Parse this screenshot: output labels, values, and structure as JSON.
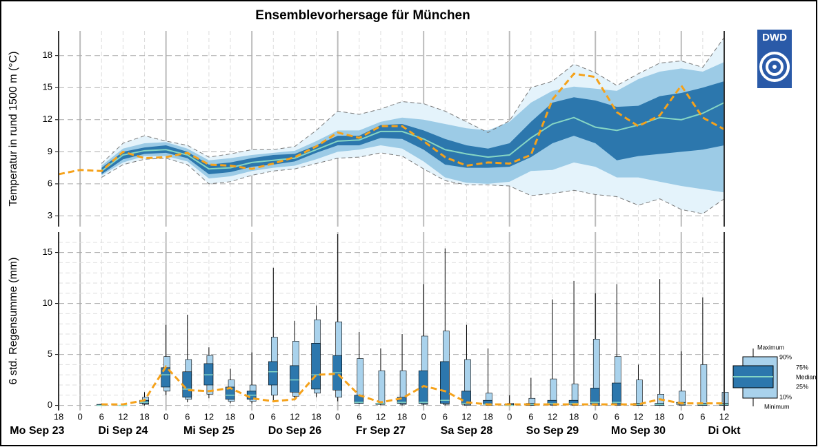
{
  "logo": "DWD",
  "chart_data": [
    {
      "type": "fan",
      "title": "Ensemblevorhersage für München",
      "ylabel": "Temperatur  in rund 1500 m (°C)",
      "ylim": [
        2,
        20.3
      ],
      "yticks": [
        3,
        6,
        9,
        12,
        15,
        18
      ],
      "grid": true,
      "colors": {
        "range": "#e4f3fb",
        "outer": "#9ccbe6",
        "inner": "#2c77ad",
        "median": "#86d6c4",
        "deterministic": "#f5a21b",
        "edge": "#777777"
      },
      "min": [
        null,
        null,
        6.6,
        7.8,
        8.3,
        8.4,
        7.8,
        6.0,
        6.2,
        6.8,
        7.2,
        7.4,
        7.9,
        8.4,
        8.5,
        8.9,
        8.6,
        7.4,
        6.3,
        5.9,
        5.9,
        5.8,
        4.9,
        5.1,
        5.4,
        5.0,
        4.8,
        4.0,
        4.6,
        3.6,
        3.2,
        4.6
      ],
      "p10": [
        null,
        null,
        6.8,
        8.0,
        8.6,
        8.6,
        8.1,
        6.5,
        6.7,
        7.2,
        7.5,
        7.7,
        8.3,
        9.0,
        9.2,
        9.6,
        9.3,
        8.1,
        6.6,
        6.1,
        6.0,
        6.2,
        7.2,
        7.3,
        8.0,
        7.6,
        6.6,
        6.6,
        6.2,
        5.8,
        5.5,
        5.2
      ],
      "p25": [
        null,
        null,
        6.9,
        8.3,
        8.8,
        8.9,
        8.4,
        6.9,
        7.1,
        7.6,
        7.8,
        8.1,
        8.9,
        9.6,
        9.6,
        10.3,
        10.2,
        9.2,
        7.8,
        7.5,
        7.5,
        7.6,
        8.5,
        9.8,
        10.5,
        9.8,
        8.2,
        8.6,
        8.8,
        9.0,
        9.2,
        9.6
      ],
      "median": [
        null,
        null,
        7.2,
        8.7,
        9.1,
        9.2,
        8.7,
        7.4,
        7.5,
        8.0,
        8.2,
        8.4,
        9.2,
        10.0,
        10.1,
        10.9,
        10.9,
        10.2,
        9.2,
        8.8,
        8.5,
        8.7,
        10.3,
        11.6,
        12.2,
        11.3,
        11.0,
        11.5,
        12.2,
        12.0,
        12.6,
        13.6
      ],
      "p75": [
        null,
        null,
        7.5,
        9.0,
        9.4,
        9.6,
        9.0,
        7.8,
        8.0,
        8.4,
        8.7,
        8.8,
        9.6,
        10.5,
        10.5,
        11.5,
        11.6,
        11.0,
        10.2,
        9.6,
        9.3,
        9.8,
        11.8,
        13.6,
        14.1,
        13.8,
        13.2,
        13.3,
        14.2,
        14.5,
        15.0,
        15.6
      ],
      "p90": [
        null,
        null,
        7.7,
        9.3,
        9.8,
        9.9,
        9.3,
        8.2,
        8.4,
        8.7,
        8.9,
        9.1,
        10.0,
        11.0,
        11.0,
        11.8,
        12.2,
        12.0,
        11.6,
        11.2,
        11.0,
        11.8,
        13.6,
        14.7,
        15.1,
        14.9,
        14.7,
        15.8,
        16.5,
        16.8,
        16.5,
        17.4
      ],
      "max": [
        null,
        null,
        7.9,
        9.8,
        10.5,
        10.0,
        9.6,
        8.5,
        8.8,
        9.2,
        9.2,
        9.5,
        11.0,
        12.8,
        12.5,
        13.0,
        13.7,
        13.5,
        12.8,
        11.8,
        10.8,
        11.9,
        15.0,
        15.6,
        17.2,
        16.4,
        15.2,
        16.3,
        17.3,
        17.5,
        16.9,
        19.7
      ],
      "deterministic": [
        6.9,
        7.3,
        7.2,
        9.0,
        8.4,
        8.5,
        8.9,
        7.8,
        7.7,
        7.4,
        7.9,
        8.5,
        9.5,
        10.8,
        10.3,
        11.4,
        11.4,
        10.0,
        8.5,
        7.7,
        8.0,
        7.9,
        8.7,
        13.9,
        16.3,
        16.0,
        12.7,
        11.4,
        12.4,
        15.2,
        12.2,
        11.1
      ]
    },
    {
      "type": "box",
      "ylabel": "6 std. Regensumme (mm)",
      "ylim": [
        -0.5,
        17
      ],
      "yticks": [
        0,
        5,
        10,
        15
      ],
      "yminorticks": [
        1,
        2,
        3,
        4,
        6,
        7,
        8,
        9,
        11,
        12,
        13,
        14,
        16
      ],
      "grid": true,
      "categories": [
        18,
        0,
        6,
        12,
        18,
        0,
        6,
        12,
        18,
        0,
        6,
        12,
        18,
        0,
        6,
        12,
        18,
        0,
        6,
        12,
        18,
        0,
        6,
        12,
        18,
        0,
        6,
        12,
        18,
        0,
        6,
        12
      ],
      "days": [
        "Mo Sep 23",
        "Di Sep 24",
        "Mi Sep 25",
        "Do Sep 26",
        "Fr Sep 27",
        "Sa Sep 28",
        "So Sep 29",
        "Mo Sep 30",
        "Di Okt"
      ],
      "colors": {
        "outer": "#a9d2ec",
        "inner": "#2c77ad",
        "median": "#86d6c4",
        "deterministic": "#f5a21b"
      },
      "min": [
        null,
        null,
        0,
        0,
        0,
        1.0,
        0.3,
        0.7,
        0.2,
        0.2,
        0.5,
        0.5,
        0.8,
        0.4,
        0.1,
        0,
        0,
        0,
        0,
        0,
        0,
        0,
        0,
        0,
        0,
        0,
        0,
        0,
        0,
        0,
        0,
        0
      ],
      "p10": [
        null,
        null,
        0,
        0,
        0.1,
        1.4,
        0.6,
        1.1,
        0.4,
        0.4,
        1.0,
        0.9,
        1.2,
        0.8,
        0.2,
        0.1,
        0.1,
        0.1,
        0.1,
        0,
        0,
        0,
        0,
        0,
        0,
        0,
        0,
        0,
        0,
        0,
        0,
        0
      ],
      "p25": [
        null,
        null,
        0,
        0,
        0.2,
        1.8,
        0.8,
        2.0,
        0.6,
        0.6,
        2.0,
        1.3,
        1.6,
        1.5,
        0.2,
        0.1,
        0.2,
        0.2,
        0.2,
        0.1,
        0.1,
        0,
        0,
        0.1,
        0.1,
        0.1,
        0.1,
        0,
        0,
        0.1,
        0,
        0
      ],
      "median": [
        null,
        null,
        0,
        0,
        0.3,
        3.0,
        1.6,
        3.0,
        1.0,
        1.0,
        3.3,
        2.5,
        3.0,
        3.2,
        0.3,
        0.2,
        0.3,
        0.3,
        0.5,
        0.2,
        0.1,
        0,
        0.1,
        0.2,
        0.2,
        0.3,
        0.3,
        0.1,
        0.1,
        0.2,
        0.1,
        0.1
      ],
      "p75": [
        null,
        null,
        0.1,
        0,
        0.5,
        3.7,
        3.3,
        4.1,
        1.8,
        1.4,
        4.3,
        3.9,
        6.1,
        4.9,
        1.0,
        0.2,
        0.8,
        3.4,
        4.3,
        1.4,
        0.5,
        0.1,
        0.2,
        0.5,
        0.5,
        1.7,
        2.2,
        0.2,
        0.2,
        0.3,
        0.2,
        0.2
      ],
      "p90": [
        null,
        null,
        0.1,
        0,
        0.8,
        4.8,
        4.5,
        4.9,
        2.5,
        2.0,
        6.7,
        6.3,
        8.4,
        8.2,
        4.6,
        3.4,
        3.4,
        6.8,
        7.3,
        4.5,
        1.2,
        0.2,
        0.7,
        2.6,
        2.1,
        6.5,
        4.8,
        2.5,
        1.1,
        1.4,
        4.0,
        1.3
      ],
      "max": [
        null,
        null,
        0.2,
        0,
        1.3,
        7.9,
        8.9,
        5.7,
        3.6,
        5.2,
        13.5,
        8.3,
        9.8,
        16.8,
        7.2,
        5.6,
        7.0,
        11.9,
        15.4,
        7.9,
        5.6,
        1.0,
        2.7,
        10.4,
        12.2,
        11.0,
        11.9,
        4.0,
        12.4,
        5.3,
        10.6,
        1.3
      ],
      "deterministic": [
        null,
        null,
        0.1,
        0.1,
        0.5,
        3.8,
        1.5,
        1.4,
        1.7,
        0.7,
        0.4,
        0.6,
        3.0,
        3.1,
        1.0,
        0.3,
        0.7,
        1.9,
        1.4,
        0.3,
        0.1,
        0.1,
        0.1,
        0.1,
        0.1,
        0.1,
        0.1,
        0.1,
        0.6,
        0.2,
        0.2,
        0.2
      ],
      "legend_labels": [
        "Maximum",
        "90%",
        "75%",
        "Median",
        "25%",
        "10%",
        "Minimum"
      ]
    }
  ]
}
